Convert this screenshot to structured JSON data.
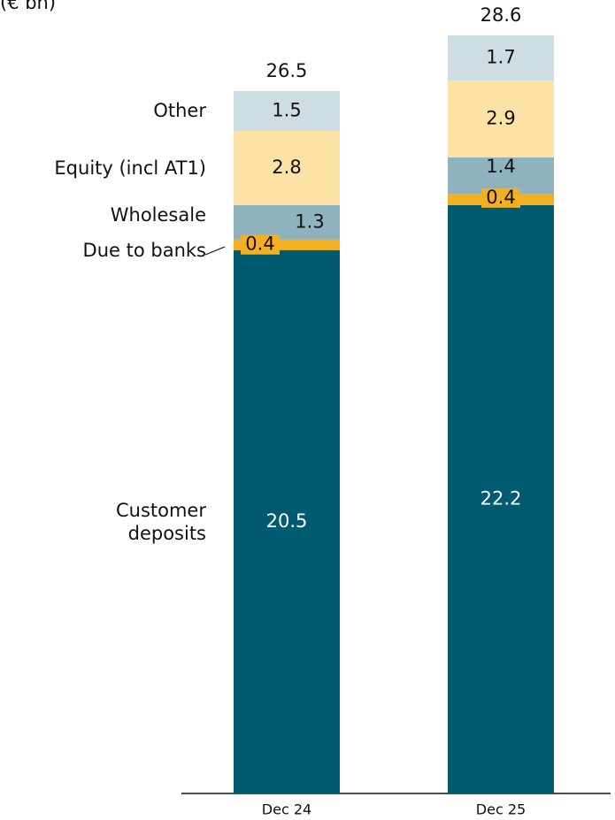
{
  "chart_data": {
    "type": "stacked_bar",
    "axis_label": "(€ bn)",
    "categories": [
      "Dec 24",
      "Dec 25"
    ],
    "series": [
      {
        "name": "Customer deposits",
        "color": "#005a70",
        "values": [
          20.5,
          22.2
        ]
      },
      {
        "name": "Due to banks",
        "color": "#f5b021",
        "values": [
          0.4,
          0.4
        ]
      },
      {
        "name": "Wholesale",
        "color": "#8fb3be",
        "values": [
          1.3,
          1.4
        ]
      },
      {
        "name": "Equity (incl AT1)",
        "color": "#fde2a6",
        "values": [
          2.8,
          2.9
        ]
      },
      {
        "name": "Other",
        "color": "#cddde4",
        "values": [
          1.5,
          1.7
        ]
      }
    ],
    "totals": [
      26.5,
      28.6
    ]
  }
}
